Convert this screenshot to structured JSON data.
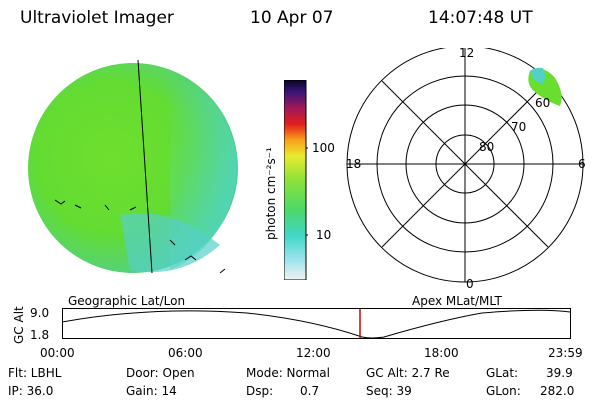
{
  "header": {
    "instrument": "Ultraviolet Imager",
    "date": "10 Apr 07",
    "time": "14:07:48 UT"
  },
  "colorbar": {
    "unit_label": "photon cm⁻²s⁻¹",
    "ticks": [
      "100",
      "10"
    ]
  },
  "polar": {
    "mlt_labels": {
      "top": "12",
      "right": "6",
      "bottom": "0",
      "left": "18"
    },
    "lat_labels": [
      "80",
      "70",
      "60"
    ]
  },
  "map_labels": {
    "left": "Geographic Lat/Lon",
    "right": "Apex  MLat/MLT"
  },
  "altitude_plot": {
    "y_axis_title": "GC Alt",
    "y_ticks": [
      "9.0",
      "1.8"
    ],
    "x_ticks": [
      "00:00",
      "06:00",
      "12:00",
      "18:00",
      "23:59"
    ],
    "marker_color": "#cc0000",
    "marker_time": "14:07:48"
  },
  "status": {
    "flt": "Flt: LBHL",
    "ip": "IP: 36.0",
    "door": "Door: Open",
    "gain": "Gain: 14",
    "mode": "Mode: Normal",
    "dsp_label": "Dsp:",
    "dsp_value": "0.7",
    "gc_alt": "GC Alt: 2.7 Re",
    "seq": "Seq: 39",
    "glat_label": "GLat:",
    "glat_value": "39.9",
    "glon_label": "GLon:",
    "glon_value": "282.0"
  },
  "colors": {
    "dominant_green": "#66e02a",
    "cyan": "#55d8d0"
  }
}
